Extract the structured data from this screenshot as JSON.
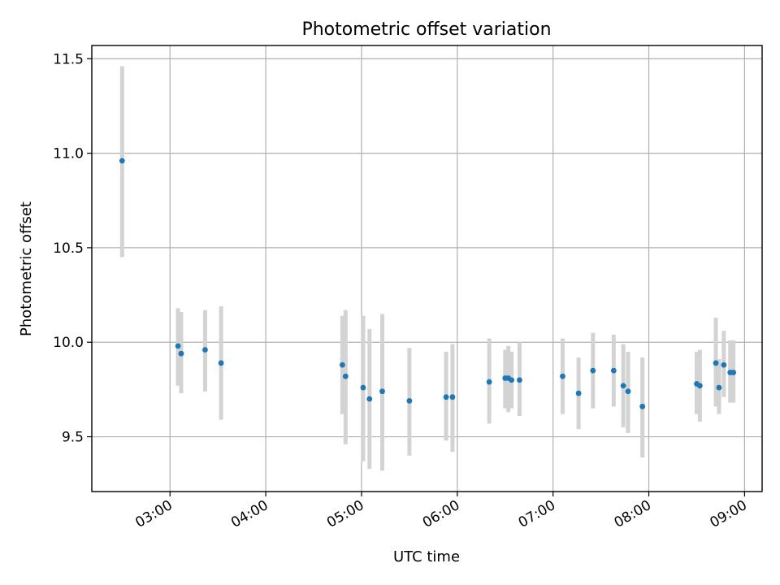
{
  "chart_data": {
    "type": "scatter",
    "title": "Photometric offset variation",
    "xlabel": "UTC time",
    "ylabel": "Photometric offset",
    "xlim": [
      "02:11",
      "09:11"
    ],
    "ylim": [
      9.21,
      11.57
    ],
    "xticks": [
      "03:00",
      "04:00",
      "05:00",
      "06:00",
      "07:00",
      "08:00",
      "09:00"
    ],
    "yticks": [
      9.5,
      10.0,
      10.5,
      11.0,
      11.5
    ],
    "grid": true,
    "colors": {
      "point": "#1f77b4",
      "errorbar": "#d3d3d3"
    },
    "points": [
      {
        "x": "02:30",
        "y": 10.96,
        "lo": 10.45,
        "hi": 11.46
      },
      {
        "x": "03:05",
        "y": 9.98,
        "lo": 9.77,
        "hi": 10.18
      },
      {
        "x": "03:07",
        "y": 9.94,
        "lo": 9.73,
        "hi": 10.16
      },
      {
        "x": "03:22",
        "y": 9.96,
        "lo": 9.74,
        "hi": 10.17
      },
      {
        "x": "03:32",
        "y": 9.89,
        "lo": 9.59,
        "hi": 10.19
      },
      {
        "x": "04:48",
        "y": 9.88,
        "lo": 9.62,
        "hi": 10.14
      },
      {
        "x": "04:50",
        "y": 9.82,
        "lo": 9.46,
        "hi": 10.17
      },
      {
        "x": "05:01",
        "y": 9.76,
        "lo": 9.37,
        "hi": 10.14
      },
      {
        "x": "05:05",
        "y": 9.7,
        "lo": 9.33,
        "hi": 10.07
      },
      {
        "x": "05:13",
        "y": 9.74,
        "lo": 9.32,
        "hi": 10.15
      },
      {
        "x": "05:30",
        "y": 9.69,
        "lo": 9.4,
        "hi": 9.97
      },
      {
        "x": "05:53",
        "y": 9.71,
        "lo": 9.48,
        "hi": 9.95
      },
      {
        "x": "05:57",
        "y": 9.71,
        "lo": 9.42,
        "hi": 9.99
      },
      {
        "x": "06:20",
        "y": 9.79,
        "lo": 9.57,
        "hi": 10.02
      },
      {
        "x": "06:30",
        "y": 9.81,
        "lo": 9.65,
        "hi": 9.96
      },
      {
        "x": "06:32",
        "y": 9.81,
        "lo": 9.63,
        "hi": 9.98
      },
      {
        "x": "06:34",
        "y": 9.8,
        "lo": 9.65,
        "hi": 9.95
      },
      {
        "x": "06:39",
        "y": 9.8,
        "lo": 9.61,
        "hi": 10.0
      },
      {
        "x": "07:06",
        "y": 9.82,
        "lo": 9.62,
        "hi": 10.02
      },
      {
        "x": "07:16",
        "y": 9.73,
        "lo": 9.54,
        "hi": 9.92
      },
      {
        "x": "07:25",
        "y": 9.85,
        "lo": 9.65,
        "hi": 10.05
      },
      {
        "x": "07:38",
        "y": 9.85,
        "lo": 9.66,
        "hi": 10.04
      },
      {
        "x": "07:44",
        "y": 9.77,
        "lo": 9.55,
        "hi": 9.99
      },
      {
        "x": "07:47",
        "y": 9.74,
        "lo": 9.52,
        "hi": 9.95
      },
      {
        "x": "07:56",
        "y": 9.66,
        "lo": 9.39,
        "hi": 9.92
      },
      {
        "x": "08:30",
        "y": 9.78,
        "lo": 9.62,
        "hi": 9.95
      },
      {
        "x": "08:32",
        "y": 9.77,
        "lo": 9.58,
        "hi": 9.96
      },
      {
        "x": "08:42",
        "y": 9.89,
        "lo": 9.66,
        "hi": 10.13
      },
      {
        "x": "08:44",
        "y": 9.76,
        "lo": 9.62,
        "hi": 9.91
      },
      {
        "x": "08:47",
        "y": 9.88,
        "lo": 9.71,
        "hi": 10.06
      },
      {
        "x": "08:51",
        "y": 9.84,
        "lo": 9.68,
        "hi": 10.01
      },
      {
        "x": "08:53",
        "y": 9.84,
        "lo": 9.68,
        "hi": 10.01
      }
    ]
  }
}
